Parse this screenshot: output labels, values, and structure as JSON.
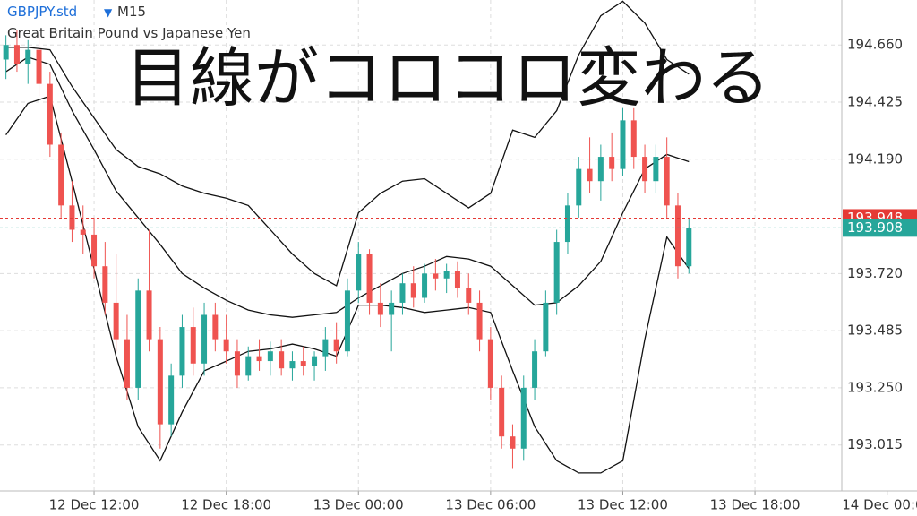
{
  "header": {
    "symbol": "GBPJPY.std",
    "timeframe": "M15",
    "description": "Great Britain Pound vs Japanese Yen"
  },
  "overlay_text": "目線がコロコロ変わる",
  "chart_data": {
    "type": "candlestick",
    "up_color": "#26a69a",
    "down_color": "#ef5350",
    "xlim": [
      -4.27,
      33.94
    ],
    "ylim": [
      192.826,
      194.845
    ],
    "grid": true,
    "xticks": [
      {
        "value": 0,
        "label": "12 Dec 12:00"
      },
      {
        "value": 6,
        "label": "12 Dec 18:00"
      },
      {
        "value": 12,
        "label": "13 Dec 00:00"
      },
      {
        "value": 18,
        "label": "13 Dec 06:00"
      },
      {
        "value": 24,
        "label": "13 Dec 12:00"
      },
      {
        "value": 30,
        "label": "13 Dec 18:00"
      },
      {
        "value": 36,
        "label": "14 Dec 00:00"
      }
    ],
    "yticks": [
      {
        "value": 194.66,
        "label": "194.660"
      },
      {
        "value": 194.425,
        "label": "194.425"
      },
      {
        "value": 194.19,
        "label": "194.190"
      },
      {
        "value": 193.72,
        "label": "193.720"
      },
      {
        "value": 193.485,
        "label": "193.485"
      },
      {
        "value": 193.25,
        "label": "193.250"
      },
      {
        "value": 193.015,
        "label": "193.015"
      }
    ],
    "price_lines": [
      {
        "value": 193.948,
        "label": "193.948",
        "color": "#e53935"
      },
      {
        "value": 193.908,
        "label": "193.908",
        "color": "#26a69a"
      }
    ],
    "x": [
      -4,
      -3.5,
      -3,
      -2.5,
      -2,
      -1.5,
      -1,
      -0.5,
      0,
      0.5,
      1,
      1.5,
      2,
      2.5,
      3,
      3.5,
      4,
      4.5,
      5,
      5.5,
      6,
      6.5,
      7,
      7.5,
      8,
      8.5,
      9,
      9.5,
      10,
      10.5,
      11,
      11.5,
      12,
      12.5,
      13,
      13.5,
      14,
      14.5,
      15,
      15.5,
      16,
      16.5,
      17,
      17.5,
      18,
      18.5,
      19,
      19.5,
      20,
      20.5,
      21,
      21.5,
      22,
      22.5,
      23,
      23.5,
      24,
      24.5,
      25,
      25.5,
      26,
      26.5,
      27
    ],
    "open": [
      194.6,
      194.66,
      194.58,
      194.64,
      194.5,
      194.25,
      194.0,
      193.9,
      193.88,
      193.75,
      193.6,
      193.45,
      193.25,
      193.65,
      193.45,
      193.1,
      193.3,
      193.5,
      193.35,
      193.55,
      193.45,
      193.4,
      193.3,
      193.38,
      193.36,
      193.4,
      193.33,
      193.36,
      193.34,
      193.38,
      193.45,
      193.4,
      193.65,
      193.8,
      193.6,
      193.55,
      193.6,
      193.68,
      193.62,
      193.72,
      193.7,
      193.73,
      193.66,
      193.6,
      193.45,
      193.25,
      193.05,
      193.0,
      193.25,
      193.4,
      193.6,
      193.85,
      194.0,
      194.15,
      194.1,
      194.2,
      194.15,
      194.35,
      194.2,
      194.1,
      194.2,
      194.0,
      193.75
    ],
    "high": [
      194.7,
      194.72,
      194.68,
      194.7,
      194.55,
      194.3,
      194.1,
      194.0,
      193.95,
      193.85,
      193.8,
      193.55,
      193.7,
      193.9,
      193.5,
      193.35,
      193.55,
      193.58,
      193.6,
      193.6,
      193.55,
      193.45,
      193.42,
      193.45,
      193.44,
      193.45,
      193.4,
      193.42,
      193.4,
      193.5,
      193.52,
      193.7,
      193.85,
      193.82,
      193.68,
      193.65,
      193.72,
      193.75,
      193.76,
      193.78,
      193.76,
      193.77,
      193.72,
      193.65,
      193.5,
      193.3,
      193.1,
      193.3,
      193.45,
      193.65,
      193.9,
      194.05,
      194.2,
      194.28,
      194.25,
      194.3,
      194.4,
      194.4,
      194.25,
      194.25,
      194.28,
      194.05,
      193.95
    ],
    "low": [
      194.52,
      194.55,
      194.5,
      194.45,
      194.2,
      193.95,
      193.85,
      193.8,
      193.7,
      193.55,
      193.4,
      193.2,
      193.2,
      193.4,
      193.0,
      193.05,
      193.25,
      193.3,
      193.3,
      193.4,
      193.35,
      193.25,
      193.28,
      193.32,
      193.3,
      193.3,
      193.28,
      193.3,
      193.28,
      193.32,
      193.35,
      193.38,
      193.6,
      193.55,
      193.5,
      193.4,
      193.55,
      193.58,
      193.6,
      193.65,
      193.64,
      193.62,
      193.55,
      193.4,
      193.2,
      193.0,
      192.92,
      192.95,
      193.2,
      193.38,
      193.55,
      193.8,
      193.95,
      194.05,
      194.02,
      194.1,
      194.12,
      194.15,
      194.05,
      194.05,
      193.95,
      193.7,
      193.72
    ],
    "close": [
      194.66,
      194.58,
      194.64,
      194.5,
      194.25,
      194.0,
      193.9,
      193.88,
      193.75,
      193.6,
      193.45,
      193.25,
      193.65,
      193.45,
      193.1,
      193.3,
      193.5,
      193.35,
      193.55,
      193.45,
      193.4,
      193.3,
      193.38,
      193.36,
      193.4,
      193.33,
      193.36,
      193.34,
      193.38,
      193.45,
      193.4,
      193.65,
      193.8,
      193.6,
      193.55,
      193.6,
      193.68,
      193.62,
      193.72,
      193.7,
      193.73,
      193.66,
      193.6,
      193.45,
      193.25,
      193.05,
      193.0,
      193.25,
      193.4,
      193.6,
      193.85,
      194.0,
      194.15,
      194.1,
      194.2,
      194.15,
      194.35,
      194.2,
      194.1,
      194.2,
      194.0,
      193.75,
      193.908
    ],
    "bands": {
      "color": "#111111",
      "x": [
        -4,
        -3,
        -2,
        -1,
        0,
        1,
        2,
        3,
        4,
        5,
        6,
        7,
        8,
        9,
        10,
        11,
        12,
        13,
        14,
        15,
        16,
        17,
        18,
        19,
        20,
        21,
        22,
        23,
        24,
        25,
        26,
        27
      ],
      "upper": [
        194.65,
        194.65,
        194.64,
        194.49,
        194.36,
        194.23,
        194.16,
        194.13,
        194.08,
        194.05,
        194.03,
        194.0,
        193.9,
        193.8,
        193.72,
        193.67,
        193.97,
        194.05,
        194.1,
        194.11,
        194.05,
        193.99,
        194.05,
        194.31,
        194.28,
        194.39,
        194.62,
        194.78,
        194.84,
        194.75,
        194.6,
        194.54
      ],
      "middle": [
        194.55,
        194.61,
        194.58,
        194.39,
        194.23,
        194.06,
        193.95,
        193.84,
        193.72,
        193.66,
        193.61,
        193.57,
        193.55,
        193.54,
        193.55,
        193.56,
        193.62,
        193.67,
        193.72,
        193.75,
        193.79,
        193.78,
        193.75,
        193.67,
        193.59,
        193.6,
        193.67,
        193.77,
        193.97,
        194.15,
        194.21,
        194.18
      ],
      "lower": [
        194.29,
        194.42,
        194.45,
        194.1,
        193.74,
        193.38,
        193.09,
        192.95,
        193.15,
        193.32,
        193.36,
        193.4,
        193.41,
        193.43,
        193.41,
        193.38,
        193.59,
        193.59,
        193.58,
        193.56,
        193.57,
        193.58,
        193.56,
        193.32,
        193.09,
        192.95,
        192.9,
        192.9,
        192.95,
        193.45,
        193.87,
        193.74
      ]
    }
  }
}
